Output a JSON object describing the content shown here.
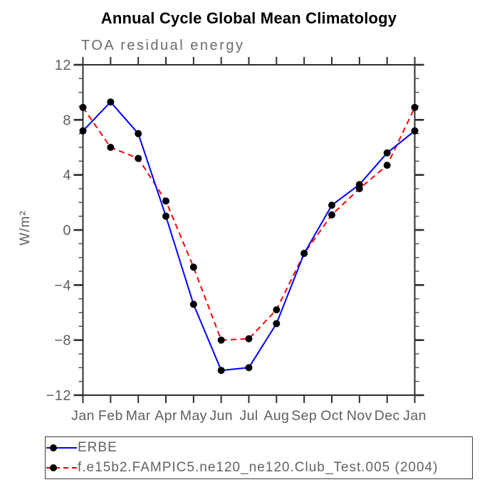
{
  "title": "Annual Cycle Global Mean Climatology",
  "subtitle": "TOA residual energy",
  "y_axis_label": "W/m²",
  "colors": {
    "erbe_line": "#0000ff",
    "model_line": "#ff0000",
    "marker": "#000000",
    "frame": "#2e2e2e",
    "minor_tick": "#4a4a4a",
    "tick_label": "#5e5e5e",
    "subtitle_text": "#6b6b6b",
    "legend_text": "#636363"
  },
  "legend": {
    "entries": [
      {
        "label": "ERBE",
        "color": "#0000ff",
        "style": "solid",
        "marker": "black-dot"
      },
      {
        "label": "f.e15b2.FAMPIC5.ne120_ne120.Club_Test.005 (2004)",
        "color": "#ff0000",
        "style": "dashed",
        "marker": "black-dot"
      }
    ]
  },
  "chart_data": {
    "type": "line",
    "title": "Annual Cycle Global Mean Climatology",
    "subtitle": "TOA residual energy",
    "xlabel": "",
    "ylabel": "W/m²",
    "x_tick_labels": [
      "Jan",
      "Feb",
      "Mar",
      "Apr",
      "May",
      "Jun",
      "Jul",
      "Aug",
      "Sep",
      "Oct",
      "Nov",
      "Dec",
      "Jan"
    ],
    "ylim": [
      -12,
      12
    ],
    "y_major_ticks": [
      12,
      8,
      4,
      0,
      -4,
      -8,
      -12
    ],
    "y_minor_step": 1,
    "grid": false,
    "tick_direction": "out",
    "legend_position": "bottom-left-box",
    "series": [
      {
        "name": "ERBE",
        "color": "#0000ff",
        "line_style": "solid",
        "marker": "circle",
        "values": [
          7.2,
          9.3,
          7.0,
          1.0,
          -5.4,
          -10.2,
          -10.0,
          -6.8,
          -1.7,
          1.8,
          3.3,
          5.6,
          7.2
        ]
      },
      {
        "name": "f.e15b2.FAMPIC5.ne120_ne120.Club_Test.005 (2004)",
        "color": "#ff0000",
        "line_style": "dashed",
        "marker": "circle",
        "values": [
          8.9,
          6.0,
          5.2,
          2.1,
          -2.7,
          -8.0,
          -7.9,
          -5.8,
          -1.7,
          1.1,
          3.0,
          4.7,
          8.9
        ]
      }
    ]
  }
}
